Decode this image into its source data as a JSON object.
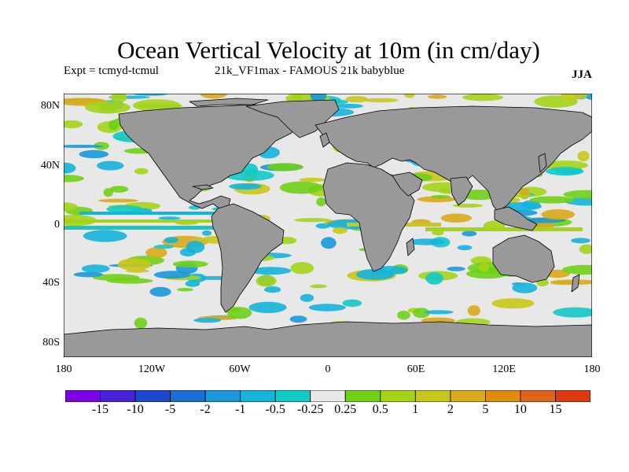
{
  "title": "Ocean Vertical Velocity at 10m (in cm/day)",
  "experiment": "Expt = tcmyd-tcmul",
  "run": "21k_VF1max - FAMOUS 21k babyblue",
  "season": "JJA",
  "lat_labels": [
    "80N",
    "40N",
    "0",
    "40S",
    "80S"
  ],
  "lon_labels": [
    "180",
    "120W",
    "60W",
    "0",
    "60E",
    "120E",
    "180"
  ],
  "legend": {
    "colors": [
      "#7f00e6",
      "#4a22d9",
      "#1b48d0",
      "#1a6ed8",
      "#1a98da",
      "#16b3dc",
      "#11c9c9",
      "#e8e8e8",
      "#6fd016",
      "#a3d418",
      "#c8c81a",
      "#d9aa1b",
      "#e08a10",
      "#e0631a",
      "#e0380f"
    ],
    "labels": [
      "-15",
      "-10",
      "-5",
      "-2",
      "-1",
      "-0.5",
      "-0.25",
      "0.25",
      "0.5",
      "1",
      "2",
      "5",
      "10",
      "15"
    ]
  },
  "colors": {
    "land": "#999999",
    "no_change": "#e8e8e8"
  }
}
